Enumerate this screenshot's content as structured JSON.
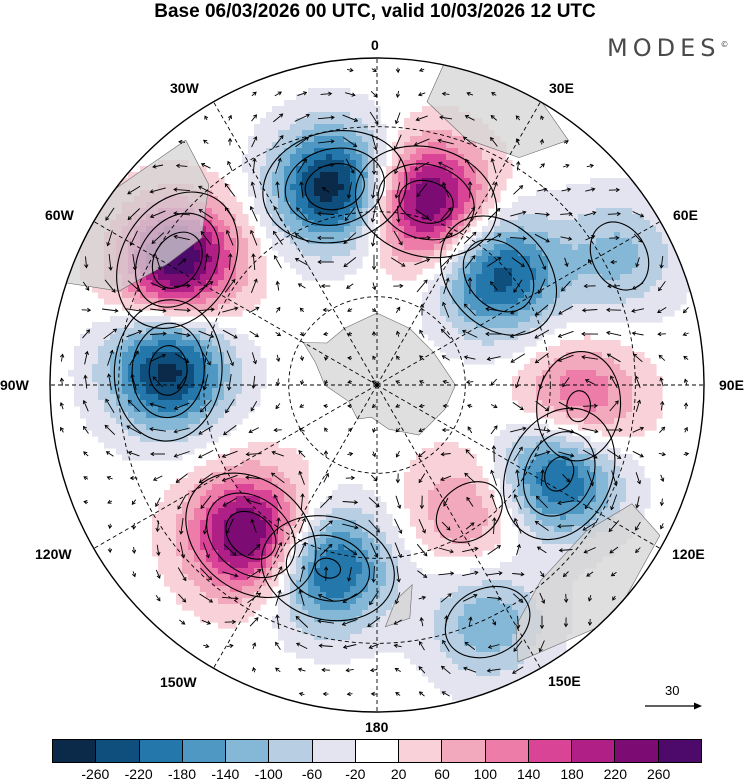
{
  "header": {
    "title": "Base 06/03/2026 00 UTC, valid 10/03/2026 12 UTC",
    "logo": "MODES",
    "logo_mark": "©"
  },
  "map": {
    "projection": "south-polar-stereographic",
    "longitude_labels": {
      "top": "0",
      "top_right": "30E",
      "right_upper": "60E",
      "right": "90E",
      "right_lower": "120E",
      "bottom_right": "150E",
      "bottom": "180",
      "bottom_left": "150W",
      "left_lower": "120W",
      "left": "90W",
      "left_upper": "60W",
      "top_left": "30W"
    },
    "reference_vector": {
      "value": "30"
    },
    "anomaly_centers": [
      {
        "sign": "negative",
        "lon": -12,
        "r": 0.62,
        "amp": -300
      },
      {
        "sign": "positive",
        "lon": 15,
        "r": 0.58,
        "amp": 290
      },
      {
        "sign": "negative",
        "lon": 48,
        "r": 0.5,
        "amp": -240
      },
      {
        "sign": "negative",
        "lon": 62,
        "r": 0.84,
        "amp": -110
      },
      {
        "sign": "positive",
        "lon": -58,
        "r": 0.72,
        "amp": 300
      },
      {
        "sign": "negative",
        "lon": -86,
        "r": 0.64,
        "amp": -280
      },
      {
        "sign": "positive",
        "lon": 96,
        "r": 0.62,
        "amp": 170
      },
      {
        "sign": "negative",
        "lon": 116,
        "r": 0.62,
        "amp": -260
      },
      {
        "sign": "positive",
        "lon": 144,
        "r": 0.48,
        "amp": 110
      },
      {
        "sign": "negative",
        "lon": 155,
        "r": 0.8,
        "amp": -130
      },
      {
        "sign": "positive",
        "lon": -140,
        "r": 0.6,
        "amp": 290
      },
      {
        "sign": "negative",
        "lon": -165,
        "r": 0.58,
        "amp": -250
      }
    ],
    "land_color": "#d4d4d4"
  },
  "colorbar": {
    "colors": [
      "#0b2a4a",
      "#0e4f7d",
      "#2377aa",
      "#4f98c4",
      "#85b7d6",
      "#b8cee3",
      "#e4e4f0",
      "#ffffff",
      "#f8d2d8",
      "#f3a9bd",
      "#ed7ca8",
      "#d94496",
      "#b01f86",
      "#7c0c74",
      "#4d0a6a"
    ],
    "tick_labels": [
      "-260",
      "-220",
      "-180",
      "-140",
      "-100",
      "-60",
      "-20",
      "20",
      "60",
      "100",
      "140",
      "180",
      "220",
      "260"
    ]
  }
}
